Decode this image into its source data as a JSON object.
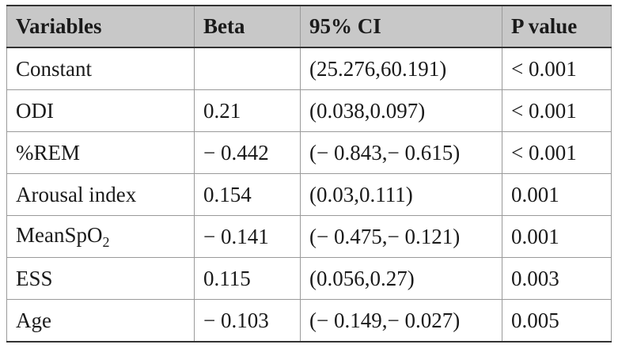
{
  "table": {
    "headers": [
      "Variables",
      "Beta",
      "95% CI",
      "P value"
    ],
    "rows": [
      {
        "variable": "Constant",
        "beta": "",
        "ci": "(25.276,60.191)",
        "p": "< 0.001"
      },
      {
        "variable": "ODI",
        "beta": "0.21",
        "ci": "(0.038,0.097)",
        "p": "< 0.001"
      },
      {
        "variable": "%REM",
        "beta": "− 0.442",
        "ci": "(− 0.843,− 0.615)",
        "p": "< 0.001"
      },
      {
        "variable": "Arousal index",
        "beta": "0.154",
        "ci": "(0.03,0.111)",
        "p": "0.001"
      },
      {
        "variable": "MeanSpO",
        "variable_sub": "2",
        "beta": "− 0.141",
        "ci": "(− 0.475,− 0.121)",
        "p": "0.001"
      },
      {
        "variable": "ESS",
        "beta": "0.115",
        "ci": "(0.056,0.27)",
        "p": "0.003"
      },
      {
        "variable": "Age",
        "beta": "− 0.103",
        "ci": "(− 0.149,− 0.027)",
        "p": "0.005"
      }
    ]
  }
}
